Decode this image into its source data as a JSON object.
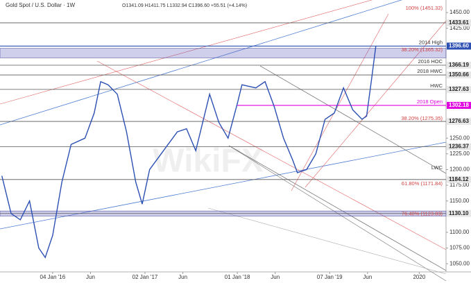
{
  "chart_data": {
    "type": "line",
    "title": "Gold Spot / U.S. Dollar · 1W",
    "subtitle": "O1341.09 H1411.75 L1332.94 C1396.60 +55.51 (+4.14%)",
    "watermark": "WikiFX",
    "x": [
      2015.45,
      2015.55,
      2015.65,
      2015.75,
      2015.85,
      2015.92,
      2016.0,
      2016.1,
      2016.2,
      2016.35,
      2016.45,
      2016.52,
      2016.6,
      2016.7,
      2016.8,
      2016.9,
      2016.97,
      2017.05,
      2017.2,
      2017.35,
      2017.45,
      2017.55,
      2017.7,
      2017.8,
      2017.9,
      2018.0,
      2018.05,
      2018.2,
      2018.3,
      2018.4,
      2018.5,
      2018.6,
      2018.65,
      2018.75,
      2018.85,
      2018.95,
      2019.05,
      2019.15,
      2019.25,
      2019.35,
      2019.4,
      2019.45,
      2019.5
    ],
    "series": [
      {
        "name": "Gold Spot",
        "color": "#2b4fb3",
        "values": [
          1190,
          1130,
          1120,
          1150,
          1075,
          1060,
          1095,
          1180,
          1240,
          1250,
          1290,
          1340,
          1335,
          1320,
          1260,
          1180,
          1145,
          1200,
          1230,
          1260,
          1265,
          1230,
          1320,
          1275,
          1250,
          1305,
          1335,
          1330,
          1340,
          1300,
          1250,
          1215,
          1195,
          1200,
          1225,
          1280,
          1290,
          1330,
          1295,
          1280,
          1285,
          1340,
          1396.6
        ]
      }
    ],
    "xlim": [
      2015.43,
      2020.26
    ],
    "xticks": [
      {
        "value": 2016.0,
        "label": "04 Jan '16"
      },
      {
        "value": 2016.41,
        "label": "Jun"
      },
      {
        "value": 2017.0,
        "label": "02 Jan '17"
      },
      {
        "value": 2017.41,
        "label": "Jun"
      },
      {
        "value": 2018.0,
        "label": "01 Jan '18"
      },
      {
        "value": 2018.41,
        "label": "Jun"
      },
      {
        "value": 2019.0,
        "label": "07 Jan '19"
      },
      {
        "value": 2019.41,
        "label": "Jun"
      },
      {
        "value": 2019.97,
        "label": "2020"
      }
    ],
    "ylim": [
      1037,
      1470
    ],
    "yticks": [
      {
        "value": 1050,
        "label": "1050.00"
      },
      {
        "value": 1075,
        "label": "1075.00"
      },
      {
        "value": 1100,
        "label": "1100.00"
      },
      {
        "value": 1150,
        "label": "1150.00"
      },
      {
        "value": 1175,
        "label": "1175.00"
      },
      {
        "value": 1200,
        "label": "1200.00"
      },
      {
        "value": 1225,
        "label": "1225.00"
      },
      {
        "value": 1250,
        "label": "1250.00"
      },
      {
        "value": 1425,
        "label": "1425.00"
      },
      {
        "value": 1450,
        "label": "1450.00"
      }
    ],
    "levels": [
      {
        "value": 1433.61,
        "color": "#555555"
      },
      {
        "value": 1396.6,
        "label": "1396.60",
        "color": "#2b4fb3",
        "current": true
      },
      {
        "value": 1366.19,
        "color": "#555555"
      },
      {
        "value": 1350.66,
        "color": "#555555"
      },
      {
        "value": 1327.63,
        "color": "#555555"
      },
      {
        "value": 1302.18,
        "color": "#e000e0",
        "from": 2018.0
      },
      {
        "value": 1276.63,
        "color": "#555555"
      },
      {
        "value": 1236.37,
        "color": "#555555"
      },
      {
        "value": 1184.12,
        "color": "#555555"
      },
      {
        "value": 1130.1,
        "label": "1130.10",
        "color": "#555555"
      }
    ],
    "bands": [
      [
        1378,
        1393
      ],
      [
        1126,
        1134
      ]
    ],
    "annotations": [
      {
        "text": "100% (1451.32)",
        "value": 1451.32,
        "color": "#d04040"
      },
      {
        "text": "2014 High",
        "value": 1396.6,
        "color": "#333333"
      },
      {
        "text": "38.20% (1365.32)",
        "value": 1385,
        "color": "#d04040"
      },
      {
        "text": "2016 HOC",
        "value": 1366.19,
        "color": "#333333"
      },
      {
        "text": "2018 HWC",
        "value": 1350.66,
        "color": "#333333"
      },
      {
        "text": "HWC",
        "value": 1327.63,
        "color": "#333333"
      },
      {
        "text": "2018 Open",
        "value": 1302.18,
        "color": "#e000e0"
      },
      {
        "text": "38.20% (1275.35)",
        "value": 1275.35,
        "color": "#d04040"
      },
      {
        "text": "LWC",
        "value": 1197,
        "color": "#333333"
      },
      {
        "text": "61.80% (1171.84)",
        "value": 1171.84,
        "color": "#d04040"
      },
      {
        "text": "76.40% (1123.83)",
        "value": 1123.83,
        "color": "#d04040"
      }
    ]
  }
}
